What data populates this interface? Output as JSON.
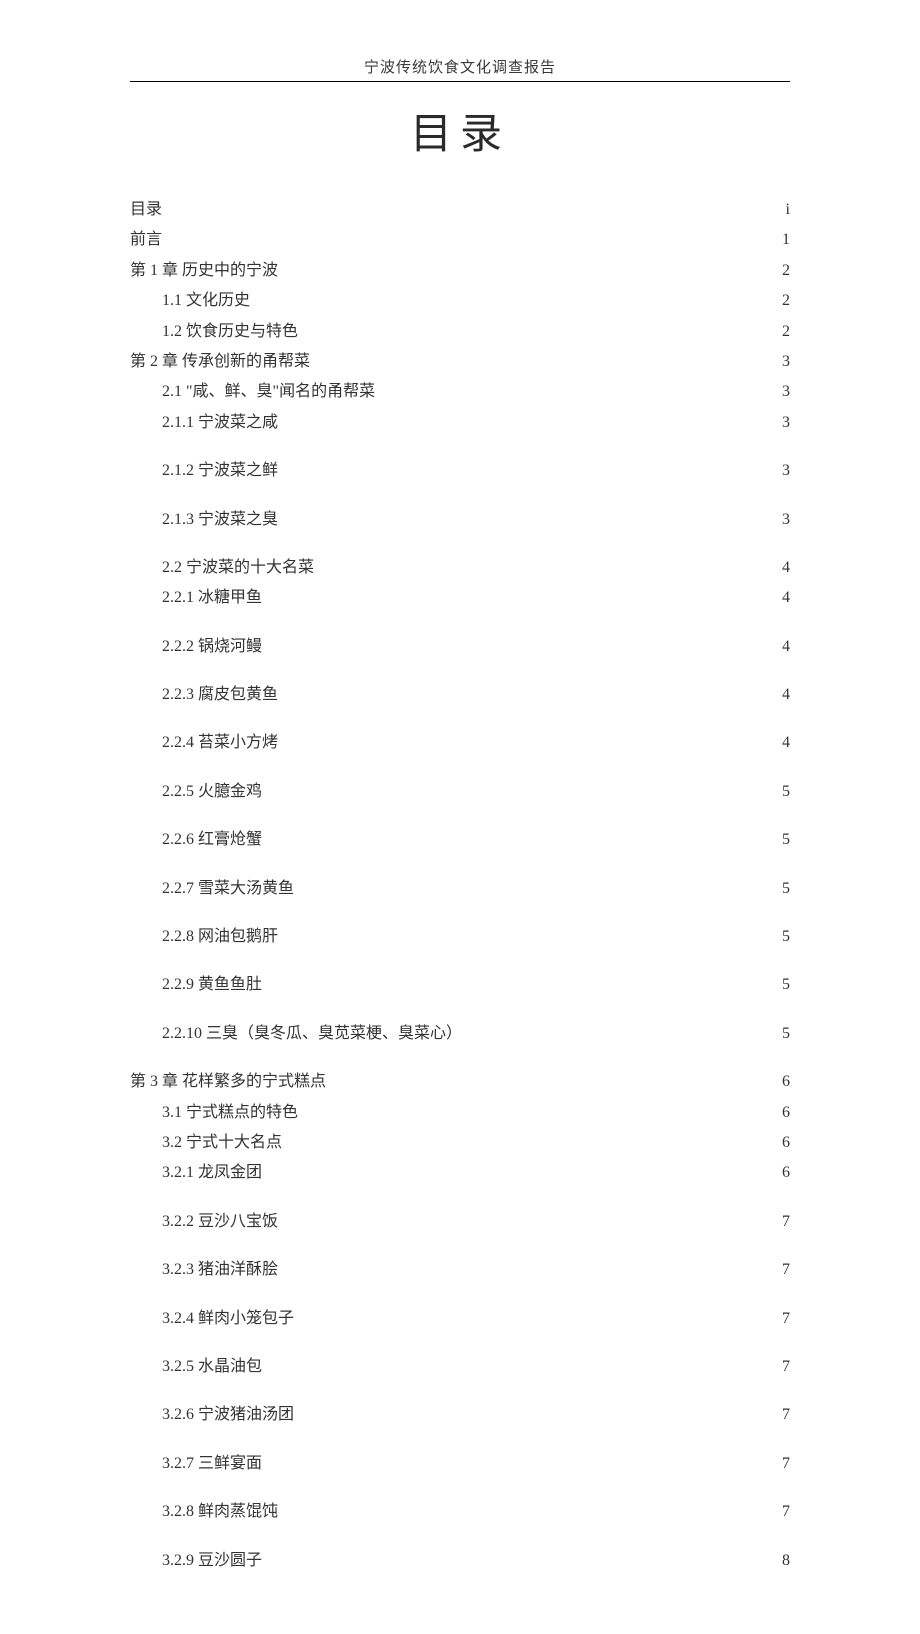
{
  "header_title": "宁波传统饮食文化调查报告",
  "page_title": "目录",
  "entries": [
    {
      "label": "目录",
      "page": "i",
      "level": 0
    },
    {
      "label": "前言",
      "page": "1",
      "level": 0
    },
    {
      "label": "第 1 章  历史中的宁波",
      "page": "2",
      "level": 0
    },
    {
      "label": "1.1  文化历史",
      "page": "2",
      "level": 1
    },
    {
      "label": "1.2  饮食历史与特色",
      "page": "2",
      "level": 1
    },
    {
      "label": "第 2 章  传承创新的甬帮菜",
      "page": "3",
      "level": 0
    },
    {
      "label": "2.1 \"咸、鲜、臭\"闻名的甬帮菜",
      "page": "3",
      "level": 1
    },
    {
      "label": "2.1.1  宁波菜之咸",
      "page": "3",
      "level": 2,
      "spaced": true
    },
    {
      "label": "2.1.2  宁波菜之鲜",
      "page": "3",
      "level": 2,
      "spaced": true
    },
    {
      "label": "2.1.3  宁波菜之臭",
      "page": "3",
      "level": 2,
      "spaced": true
    },
    {
      "label": "2.2  宁波菜的十大名菜",
      "page": "4",
      "level": 1
    },
    {
      "label": "2.2.1  冰糖甲鱼",
      "page": "4",
      "level": 2,
      "spaced": true
    },
    {
      "label": "2.2.2  锅烧河鳗",
      "page": "4",
      "level": 2,
      "spaced": true
    },
    {
      "label": "2.2.3  腐皮包黄鱼",
      "page": "4",
      "level": 2,
      "spaced": true
    },
    {
      "label": "2.2.4  苔菜小方烤",
      "page": "4",
      "level": 2,
      "spaced": true
    },
    {
      "label": "2.2.5  火臆金鸡",
      "page": "5",
      "level": 2,
      "spaced": true
    },
    {
      "label": "2.2.6  红膏炝蟹",
      "page": "5",
      "level": 2,
      "spaced": true
    },
    {
      "label": "2.2.7  雪菜大汤黄鱼",
      "page": "5",
      "level": 2,
      "spaced": true
    },
    {
      "label": "2.2.8  网油包鹅肝",
      "page": "5",
      "level": 2,
      "spaced": true
    },
    {
      "label": "2.2.9  黄鱼鱼肚",
      "page": "5",
      "level": 2,
      "spaced": true
    },
    {
      "label": "2.2.10  三臭（臭冬瓜、臭苋菜梗、臭菜心）",
      "page": "5",
      "level": 2,
      "spaced": true
    },
    {
      "label": "第 3 章  花样繁多的宁式糕点",
      "page": "6",
      "level": 0
    },
    {
      "label": "3.1  宁式糕点的特色",
      "page": "6",
      "level": 1
    },
    {
      "label": "3.2  宁式十大名点",
      "page": "6",
      "level": 1
    },
    {
      "label": "3.2.1  龙凤金团",
      "page": "6",
      "level": 2,
      "spaced": true
    },
    {
      "label": "3.2.2  豆沙八宝饭",
      "page": "7",
      "level": 2,
      "spaced": true
    },
    {
      "label": "3.2.3  猪油洋酥脍",
      "page": "7",
      "level": 2,
      "spaced": true
    },
    {
      "label": "3.2.4  鲜肉小笼包子",
      "page": "7",
      "level": 2,
      "spaced": true
    },
    {
      "label": "3.2.5  水晶油包",
      "page": "7",
      "level": 2,
      "spaced": true
    },
    {
      "label": "3.2.6  宁波猪油汤团",
      "page": "7",
      "level": 2,
      "spaced": true
    },
    {
      "label": "3.2.7  三鲜宴面",
      "page": "7",
      "level": 2,
      "spaced": true
    },
    {
      "label": "3.2.8  鲜肉蒸馄饨",
      "page": "7",
      "level": 2,
      "spaced": true
    },
    {
      "label": "3.2.9  豆沙圆子",
      "page": "8",
      "level": 2,
      "spaced": true
    }
  ]
}
